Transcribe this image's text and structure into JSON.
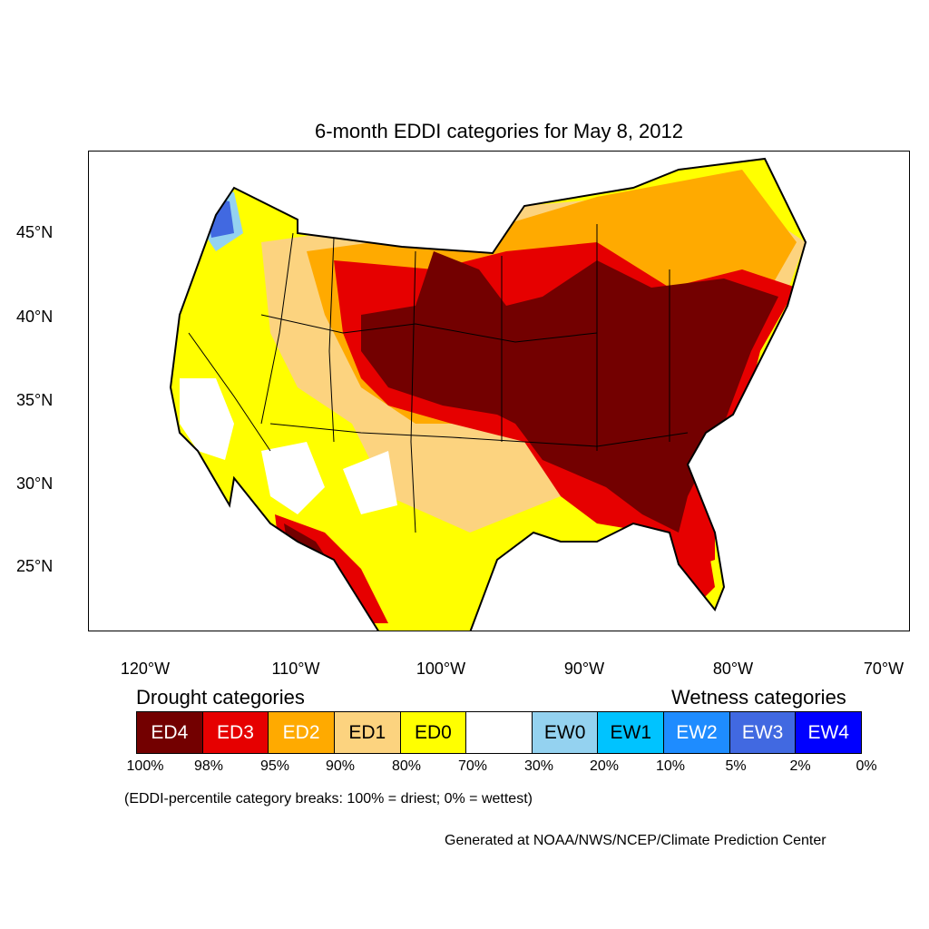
{
  "title": "6-month EDDI categories for May 8, 2012",
  "lat_labels": [
    "45°N",
    "40°N",
    "35°N",
    "30°N",
    "25°N"
  ],
  "lon_labels": [
    "120°W",
    "110°W",
    "100°W",
    "90°W",
    "80°W",
    "70°W"
  ],
  "legend": {
    "drought_heading": "Drought categories",
    "wetness_heading": "Wetness categories",
    "categories": [
      {
        "label": "ED4",
        "color": "#730000",
        "text_color": "#ffffff"
      },
      {
        "label": "ED3",
        "color": "#e60000",
        "text_color": "#ffffff"
      },
      {
        "label": "ED2",
        "color": "#ffaa00",
        "text_color": "#ffffff"
      },
      {
        "label": "ED1",
        "color": "#fcd37f",
        "text_color": "#000000"
      },
      {
        "label": "ED0",
        "color": "#ffff00",
        "text_color": "#000000"
      },
      {
        "label": "",
        "color": "#ffffff",
        "text_color": "#000000"
      },
      {
        "label": "EW0",
        "color": "#94d2f0",
        "text_color": "#000000"
      },
      {
        "label": "EW1",
        "color": "#00c3ff",
        "text_color": "#000000"
      },
      {
        "label": "EW2",
        "color": "#1e8cff",
        "text_color": "#ffffff"
      },
      {
        "label": "EW3",
        "color": "#4169e1",
        "text_color": "#ffffff"
      },
      {
        "label": "EW4",
        "color": "#0000ff",
        "text_color": "#ffffff"
      }
    ],
    "breaks": [
      "100%",
      "98%",
      "95%",
      "90%",
      "80%",
      "70%",
      "30%",
      "20%",
      "10%",
      "5%",
      "2%",
      "0%"
    ]
  },
  "breaks_note": "(EDDI-percentile category breaks: 100% = driest; 0% = wettest)",
  "credit": "Generated at NOAA/NWS/NCEP/Climate Prediction Center"
}
